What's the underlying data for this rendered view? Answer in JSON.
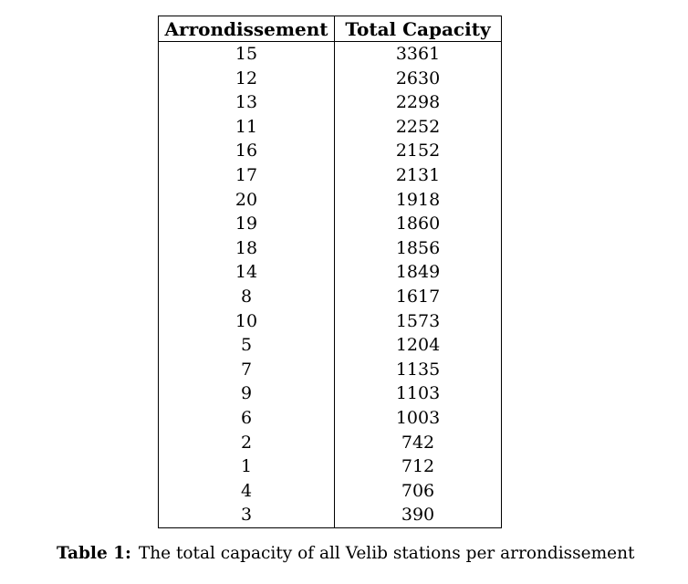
{
  "table": {
    "headers": [
      "Arrondissement",
      "Total Capacity"
    ],
    "rows": [
      [
        "15",
        "3361"
      ],
      [
        "12",
        "2630"
      ],
      [
        "13",
        "2298"
      ],
      [
        "11",
        "2252"
      ],
      [
        "16",
        "2152"
      ],
      [
        "17",
        "2131"
      ],
      [
        "20",
        "1918"
      ],
      [
        "19",
        "1860"
      ],
      [
        "18",
        "1856"
      ],
      [
        "14",
        "1849"
      ],
      [
        "8",
        "1617"
      ],
      [
        "10",
        "1573"
      ],
      [
        "5",
        "1204"
      ],
      [
        "7",
        "1135"
      ],
      [
        "9",
        "1103"
      ],
      [
        "6",
        "1003"
      ],
      [
        "2",
        "742"
      ],
      [
        "1",
        "712"
      ],
      [
        "4",
        "706"
      ],
      [
        "3",
        "390"
      ]
    ]
  },
  "caption": {
    "label": "Table 1:",
    "text": "The total capacity of all Velib stations per arrondissement"
  }
}
